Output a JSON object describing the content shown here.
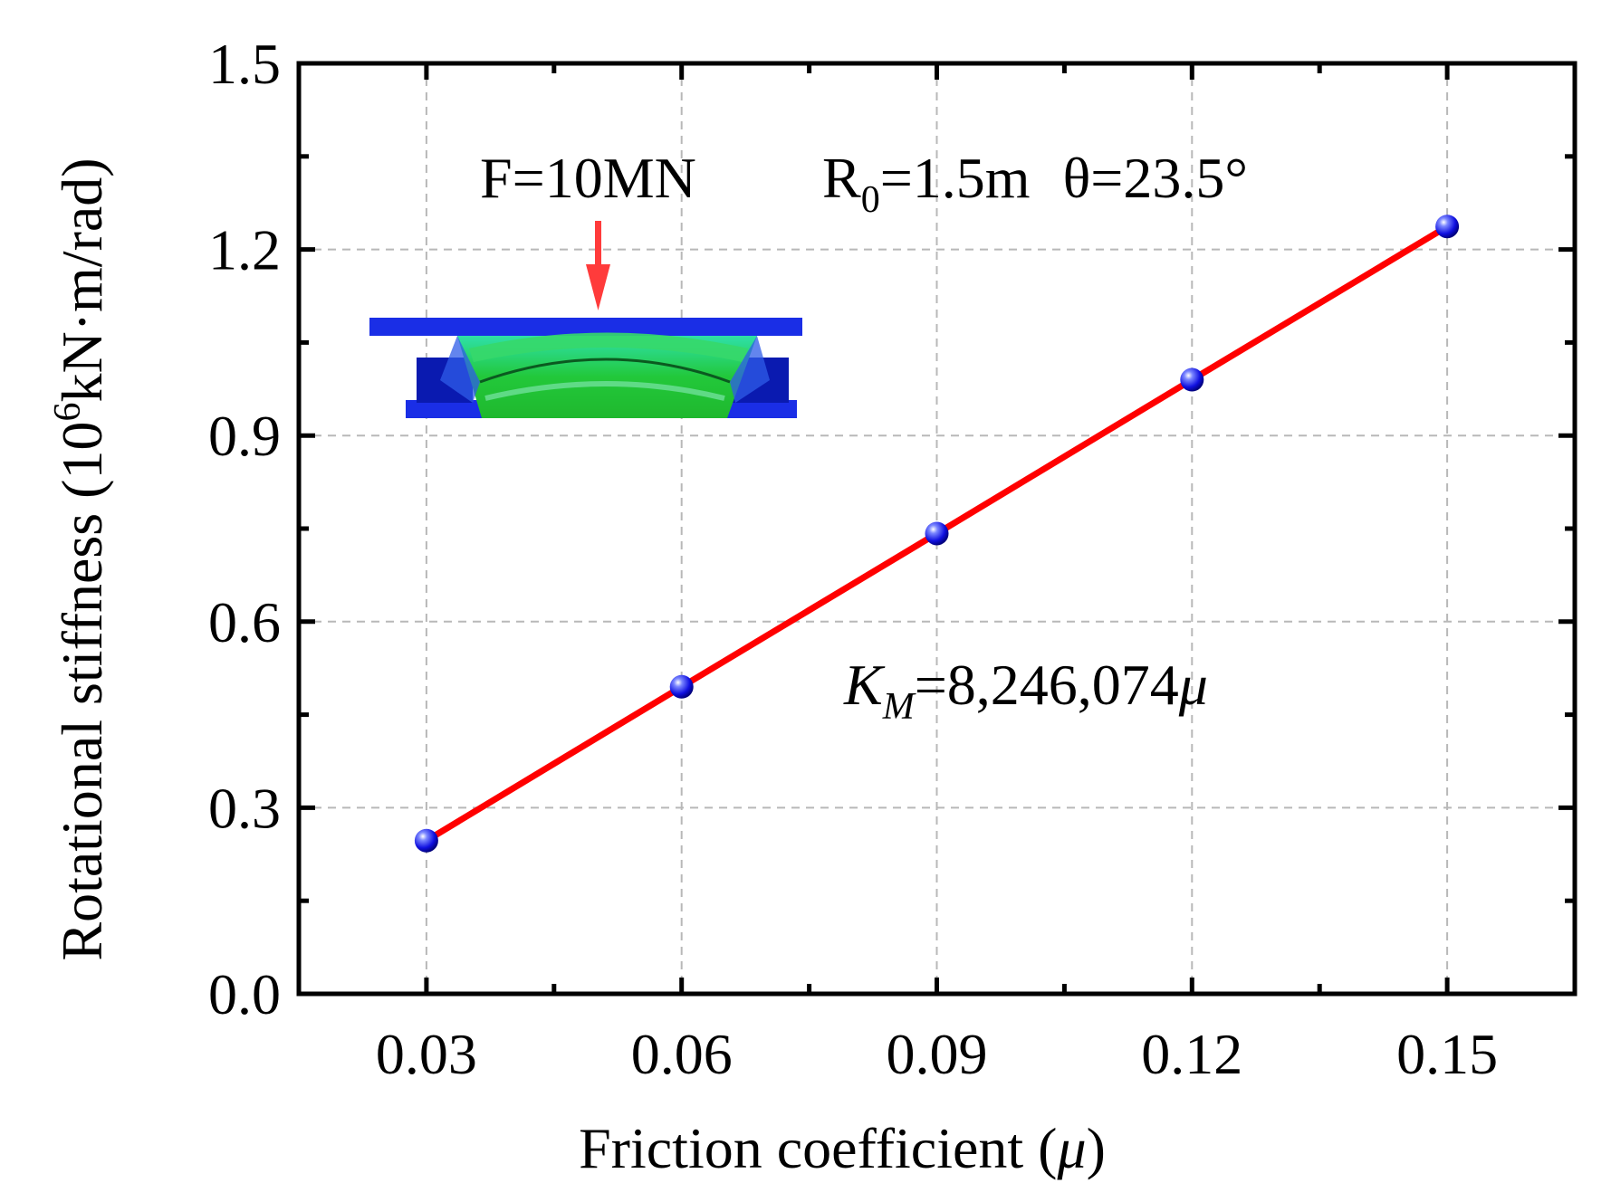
{
  "chart_data": {
    "type": "line",
    "title": "",
    "xlabel_main": "Friction coefficient (",
    "xlabel_var": "μ",
    "xlabel_end": ")",
    "ylabel_main": "Rotational stiffness (10",
    "ylabel_sup": "6",
    "ylabel_end": "kN·m/rad)",
    "x": [
      0.03,
      0.06,
      0.09,
      0.12,
      0.15
    ],
    "x_tick_labels": [
      "0.03",
      "0.06",
      "0.09",
      "0.12",
      "0.15"
    ],
    "y_ticks": [
      0.0,
      0.3,
      0.6,
      0.9,
      1.2,
      1.5
    ],
    "y_tick_labels": [
      "0.0",
      "0.3",
      "0.6",
      "0.9",
      "1.2",
      "1.5"
    ],
    "xlim": [
      0.015,
      0.165
    ],
    "ylim": [
      0,
      1.5
    ],
    "grid": true,
    "series": [
      {
        "name": "Rotational stiffness",
        "values": [
          0.247,
          0.495,
          0.742,
          0.99,
          1.237
        ],
        "line_color": "#ff0000",
        "marker_color": "#1010e0"
      }
    ],
    "annotations": {
      "load": "F=10MN",
      "radius_main": "R",
      "radius_sub": "0",
      "radius_value": "=1.5m",
      "angle": "θ=23.5°",
      "equation_var": "K",
      "equation_sub": "M",
      "equation_value": "=8,246,074",
      "equation_mu": "μ"
    }
  }
}
